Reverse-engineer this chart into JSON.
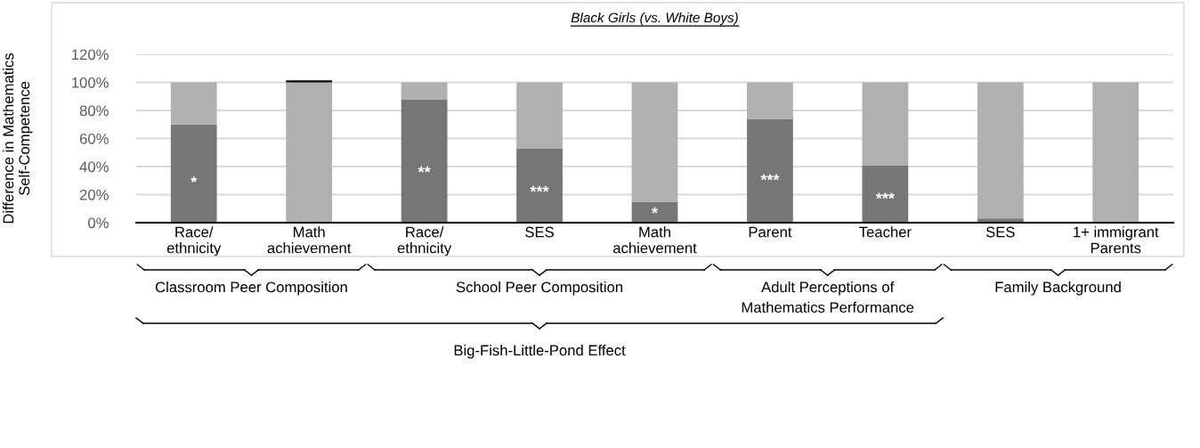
{
  "chart_data": {
    "type": "bar",
    "title": "Black Girls (vs. White Boys)",
    "ylabel": "Difference in Mathematics\nSelf-Competence",
    "categories": [
      "Race/\nethnicity",
      "Math\nachievement",
      "Race/\nethnicity",
      "SES",
      "Math\nachievement",
      "Parent",
      "Teacher",
      "SES",
      "1+ immigrant\nParents"
    ],
    "stacked": true,
    "series": [
      {
        "color": "#767676",
        "values": [
          70,
          0,
          88,
          53,
          15,
          74,
          41,
          3,
          0
        ],
        "value_labels": [
          "*",
          null,
          "**",
          "***",
          "*",
          "***",
          "***",
          null,
          null
        ]
      },
      {
        "color": "#b0b0b0",
        "values": [
          30,
          100,
          12,
          47,
          85,
          26,
          59,
          97,
          100
        ]
      },
      {
        "color": "#000000",
        "values": [
          0,
          1.5,
          0,
          0,
          0,
          0,
          0,
          0,
          null
        ]
      }
    ],
    "ylim": [
      0,
      120
    ],
    "yticks": [
      {
        "value": 0,
        "label": "0%"
      },
      {
        "value": 20,
        "label": "20%"
      },
      {
        "value": 40,
        "label": "40%"
      },
      {
        "value": 60,
        "label": "60%"
      },
      {
        "value": 80,
        "label": "80%"
      },
      {
        "value": 100,
        "label": "100%"
      },
      {
        "value": 120,
        "label": "120%"
      }
    ],
    "grid": "y",
    "legend": false,
    "annotations": [
      "Classroom Peer Composition",
      "School Peer Composition",
      "Adult Perceptions of\nMathematics Performance",
      "Family Background",
      "Big-Fish-Little-Pond Effect"
    ]
  }
}
